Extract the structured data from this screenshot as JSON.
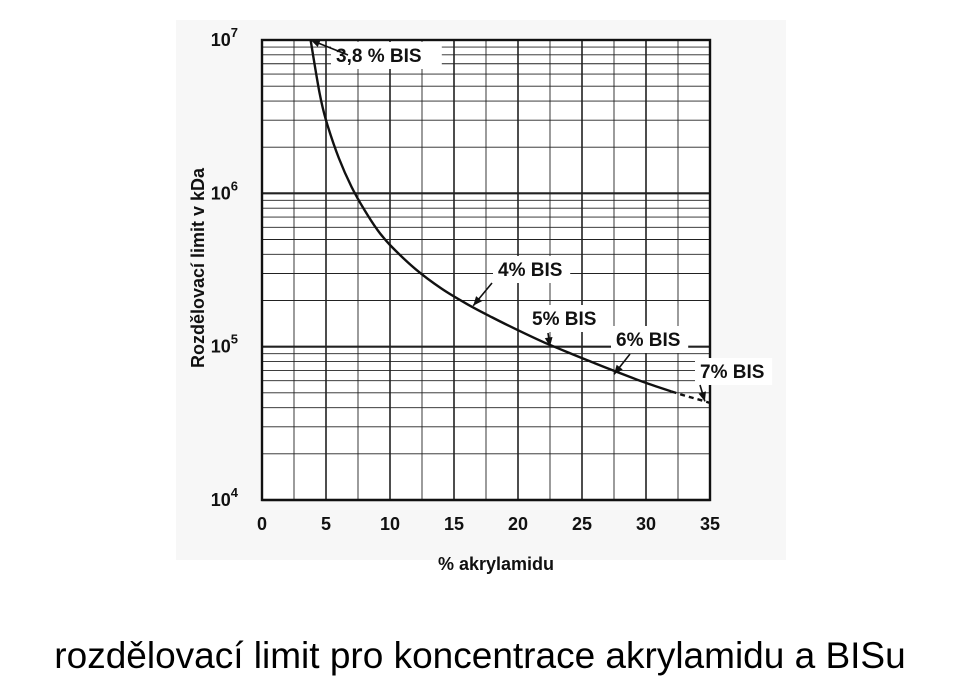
{
  "caption": "rozdělovací limit pro koncentrace akrylamidu a BISu",
  "chart_data": {
    "type": "line",
    "xlabel": "% akrylamidu",
    "ylabel": "Rozdělovací limit v kDa",
    "xlim": [
      0,
      35
    ],
    "ylim": [
      10000,
      10000000
    ],
    "y_scale": "log",
    "grid": true,
    "x_ticks": [
      0,
      5,
      10,
      15,
      20,
      25,
      30,
      35
    ],
    "y_ticks": [
      {
        "value": 10000,
        "base": "10",
        "exp": "4"
      },
      {
        "value": 100000,
        "base": "10",
        "exp": "5"
      },
      {
        "value": 1000000,
        "base": "10",
        "exp": "6"
      },
      {
        "value": 10000000,
        "base": "10",
        "exp": "7"
      }
    ],
    "series": [
      {
        "x": [
          3.8,
          4.5,
          5,
          6,
          7,
          8,
          9,
          10,
          12,
          14,
          16,
          18,
          20,
          22,
          24,
          26,
          28,
          30,
          32
        ],
        "y": [
          10000000,
          4500000,
          3000000,
          1700000,
          1100000,
          780000,
          580000,
          460000,
          320000,
          240000,
          190000,
          155000,
          128000,
          107000,
          91000,
          78000,
          67000,
          58000,
          51000
        ]
      },
      {
        "style": "dashed",
        "x": [
          32,
          33,
          34,
          35
        ],
        "y": [
          51000,
          48000,
          45500,
          43000
        ]
      }
    ],
    "annotations": [
      {
        "text": "3,8 % BIS",
        "x": 3.8,
        "y": 10000000
      },
      {
        "text": "4% BIS",
        "x": 16.5,
        "y": 185000
      },
      {
        "text": "5% BIS",
        "x": 22.5,
        "y": 100000
      },
      {
        "text": "6% BIS",
        "x": 27.5,
        "y": 66000
      },
      {
        "text": "7% BIS",
        "x": 34.6,
        "y": 44000
      }
    ]
  }
}
